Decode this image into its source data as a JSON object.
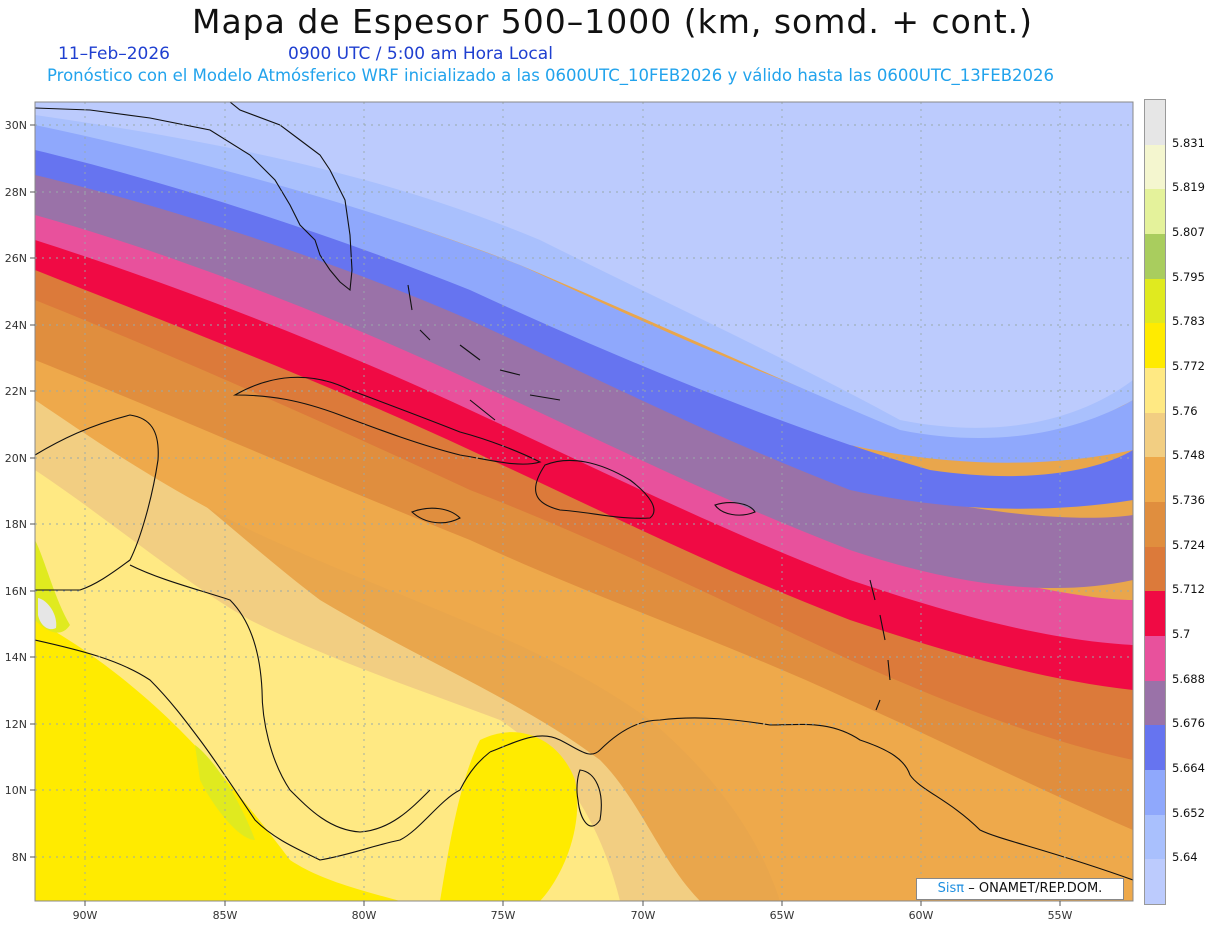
{
  "title": "Mapa de Espesor 500–1000 (km, somd. + cont.)",
  "date": "11–Feb–2026",
  "time_label": "0900 UTC / 5:00 am Hora Local",
  "subtitle": "Pronóstico con el Modelo Atmósferico WRF inicializado a las 0600UTC_10FEB2026 y válido hasta las  0600UTC_13FEB2026",
  "lat_labels": [
    "30N",
    "28N",
    "26N",
    "24N",
    "22N",
    "20N",
    "18N",
    "16N",
    "14N",
    "12N",
    "10N",
    "8N"
  ],
  "lon_labels": [
    "90W",
    "85W",
    "80W",
    "75W",
    "70W",
    "65W",
    "60W",
    "55W"
  ],
  "legend": {
    "levels": [
      "5.831",
      "5.819",
      "5.807",
      "5.795",
      "5.783",
      "5.772",
      "5.76",
      "5.748",
      "5.736",
      "5.724",
      "5.712",
      "5.7",
      "5.688",
      "5.676",
      "5.664",
      "5.652",
      "5.64"
    ],
    "colors": [
      "#e6e6e6",
      "#f4f6cf",
      "#e4f29b",
      "#a9cd5e",
      "#e0ea1f",
      "#ffeb00",
      "#ffe983",
      "#f2ce82",
      "#eea94b",
      "#e08e3e",
      "#dc7a3a",
      "#f00a44",
      "#e8519c",
      "#9a72a8",
      "#6674f0",
      "#8fa8fc",
      "#a9c0fd",
      "#bccbfd"
    ]
  },
  "credit": {
    "brand": "Sisπ",
    "text": "– ONAMET/REP.DOM."
  }
}
